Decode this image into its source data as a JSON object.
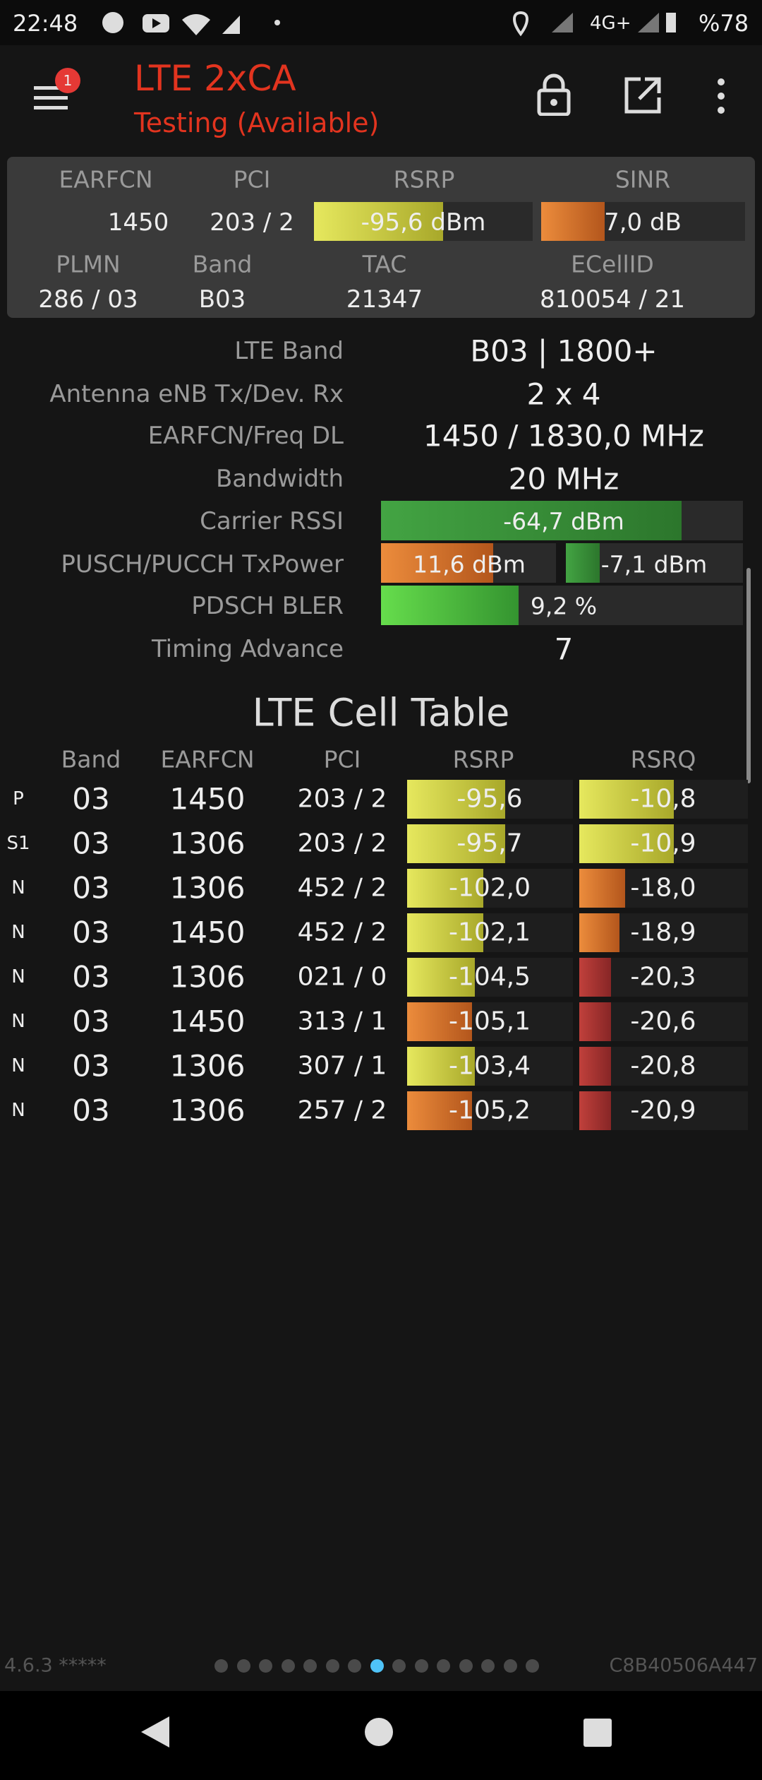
{
  "status_bar": {
    "time": "22:48",
    "network": "4G+",
    "battery": "%78"
  },
  "header": {
    "badge": "1",
    "title": "LTE 2xCA",
    "subtitle": "Testing (Available)"
  },
  "summary": {
    "labels": [
      "EARFCN",
      "PCI",
      "RSRP",
      "SINR"
    ],
    "values": [
      "1450",
      "203 / 2",
      "-95,6 dBm",
      "7,0 dB"
    ],
    "labels2": [
      "PLMN",
      "Band",
      "TAC",
      "ECellID"
    ],
    "values2": [
      "286 / 03",
      "B03",
      "21347",
      "810054 / 21"
    ]
  },
  "info": [
    {
      "label": "LTE Band",
      "value": "B03 | 1800+"
    },
    {
      "label": "Antenna eNB Tx/Dev. Rx",
      "value": "2 x 4"
    },
    {
      "label": "EARFCN/Freq DL",
      "value": "1450 / 1830,0 MHz"
    },
    {
      "label": "Bandwidth",
      "value": "20 MHz"
    },
    {
      "label": "Carrier RSSI",
      "value": "-64,7 dBm"
    },
    {
      "label": "PUSCH/PUCCH TxPower",
      "value": "11,6 dBm",
      "value2": "-7,1 dBm"
    },
    {
      "label": "PDSCH BLER",
      "value": "9,2 %"
    },
    {
      "label": "Timing Advance",
      "value": "7"
    }
  ],
  "cell_table": {
    "title": "LTE Cell Table",
    "columns": [
      "Band",
      "EARFCN",
      "PCI",
      "RSRP",
      "RSRQ"
    ],
    "rows": [
      [
        "P",
        "03",
        "1450",
        "203 / 2",
        "-95,6",
        "-10,8"
      ],
      [
        "S1",
        "03",
        "1306",
        "203 / 2",
        "-95,7",
        "-10,9"
      ],
      [
        "N",
        "03",
        "1306",
        "452 / 2",
        "-102,0",
        "-18,0"
      ],
      [
        "N",
        "03",
        "1450",
        "452 / 2",
        "-102,1",
        "-18,9"
      ],
      [
        "N",
        "03",
        "1306",
        "021 / 0",
        "-104,5",
        "-20,3"
      ],
      [
        "N",
        "03",
        "1450",
        "313 / 1",
        "-105,1",
        "-20,6"
      ],
      [
        "N",
        "03",
        "1306",
        "307 / 1",
        "-103,4",
        "-20,8"
      ],
      [
        "N",
        "03",
        "1306",
        "257 / 2",
        "-105,2",
        "-20,9"
      ]
    ]
  },
  "footer": {
    "version": "4.6.3 *****",
    "device_id": "C8B40506A447"
  }
}
